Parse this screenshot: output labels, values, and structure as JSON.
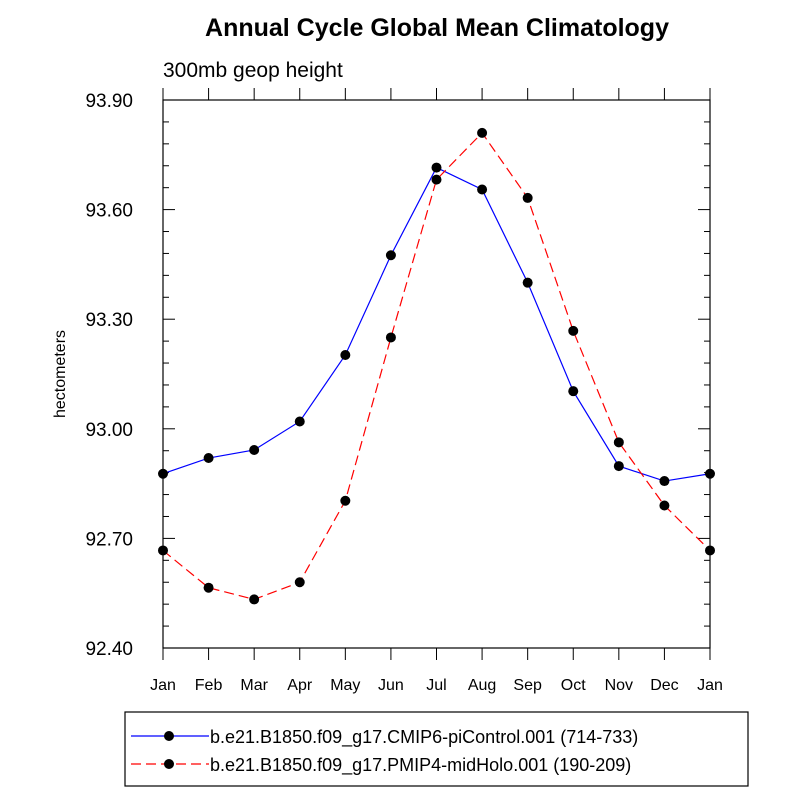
{
  "chart_data": {
    "type": "line",
    "title": "Annual Cycle Global Mean Climatology",
    "subtitle": "300mb geop height",
    "xlabel": "",
    "ylabel": "hectometers",
    "categories": [
      "Jan",
      "Feb",
      "Mar",
      "Apr",
      "May",
      "Jun",
      "Jul",
      "Aug",
      "Sep",
      "Oct",
      "Nov",
      "Dec",
      "Jan"
    ],
    "ylim": [
      92.4,
      93.9
    ],
    "yticks": [
      "93.90",
      "93.60",
      "93.30",
      "93.00",
      "92.70",
      "92.40"
    ],
    "ytick_values": [
      93.9,
      93.6,
      93.3,
      93.0,
      92.7,
      92.4
    ],
    "series": [
      {
        "name": "b.e21.B1850.f09_g17.CMIP6-piControl.001 (714-733)",
        "color": "#0000ff",
        "line_style": "solid",
        "marker": "filled-circle",
        "values": [
          92.877,
          92.92,
          92.942,
          93.02,
          93.202,
          93.475,
          93.715,
          93.655,
          93.4,
          93.103,
          92.898,
          92.857,
          92.877
        ]
      },
      {
        "name": "b.e21.B1850.f09_g17.PMIP4-midHolo.001 (190-209)",
        "color": "#ff0000",
        "line_style": "dashed",
        "marker": "filled-circle",
        "values": [
          92.667,
          92.565,
          92.533,
          92.58,
          92.803,
          93.25,
          93.682,
          93.81,
          93.632,
          93.268,
          92.963,
          92.79,
          92.667
        ]
      }
    ],
    "grid": false,
    "legend": "bottom"
  }
}
